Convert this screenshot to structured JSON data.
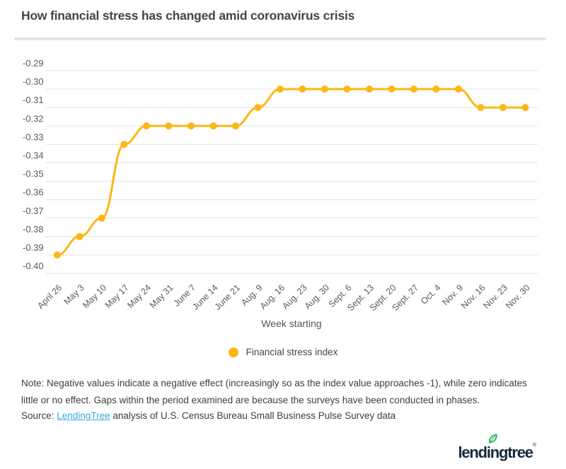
{
  "title": "How financial stress has changed amid coronavirus crisis",
  "chart_data": {
    "type": "line",
    "title": "How financial stress has changed amid coronavirus crisis",
    "x": [
      "April 26",
      "May 3",
      "May 10",
      "May 17",
      "May 24",
      "May 31",
      "June 7",
      "June 14",
      "June 21",
      "Aug. 9",
      "Aug. 16",
      "Aug. 23",
      "Aug. 30",
      "Sept. 6",
      "Sept. 13",
      "Sept. 20",
      "Sept. 27",
      "Oct. 4",
      "Nov. 9",
      "Nov. 16",
      "Nov. 23",
      "Nov. 30"
    ],
    "series": [
      {
        "name": "Financial stress index",
        "values": [
          -0.39,
          -0.38,
          -0.37,
          -0.33,
          -0.32,
          -0.32,
          -0.32,
          -0.32,
          -0.32,
          -0.31,
          -0.3,
          -0.3,
          -0.3,
          -0.3,
          -0.3,
          -0.3,
          -0.3,
          -0.3,
          -0.3,
          -0.31,
          -0.31,
          -0.31
        ]
      }
    ],
    "xlabel": "Week starting",
    "ylabel": "",
    "ylim": [
      -0.4,
      -0.29
    ],
    "ytick_labels": [
      "-0.29",
      "-0.30",
      "-0.31",
      "-0.32",
      "-0.33",
      "-0.34",
      "-0.35",
      "-0.36",
      "-0.37",
      "-0.38",
      "-0.39",
      "-0.40"
    ],
    "grid": true,
    "legend_position": "bottom",
    "line_color": "#fcb713",
    "grid_color": "#e2e2e2",
    "tick_color": "#5a5a5a"
  },
  "legend": {
    "label": "Financial stress index"
  },
  "note": "Note: Negative values indicate a negative effect (increasingly so as the index value approaches -1), while zero indicates little or no effect. Gaps within the period examined are because the surveys have been conducted in phases.",
  "source": {
    "prefix": "Source: ",
    "link_text": "LendingTree",
    "suffix": " analysis of U.S. Census Bureau Small Business Pulse Survey data"
  },
  "logo": {
    "text": "lendingtree",
    "mark": "®"
  },
  "colors": {
    "accent_yellow": "#fcb713",
    "link_blue": "#36a9e0",
    "logo_navy": "#16293d",
    "leaf_green": "#2fb457",
    "divider_gray": "#e4e4e4"
  }
}
